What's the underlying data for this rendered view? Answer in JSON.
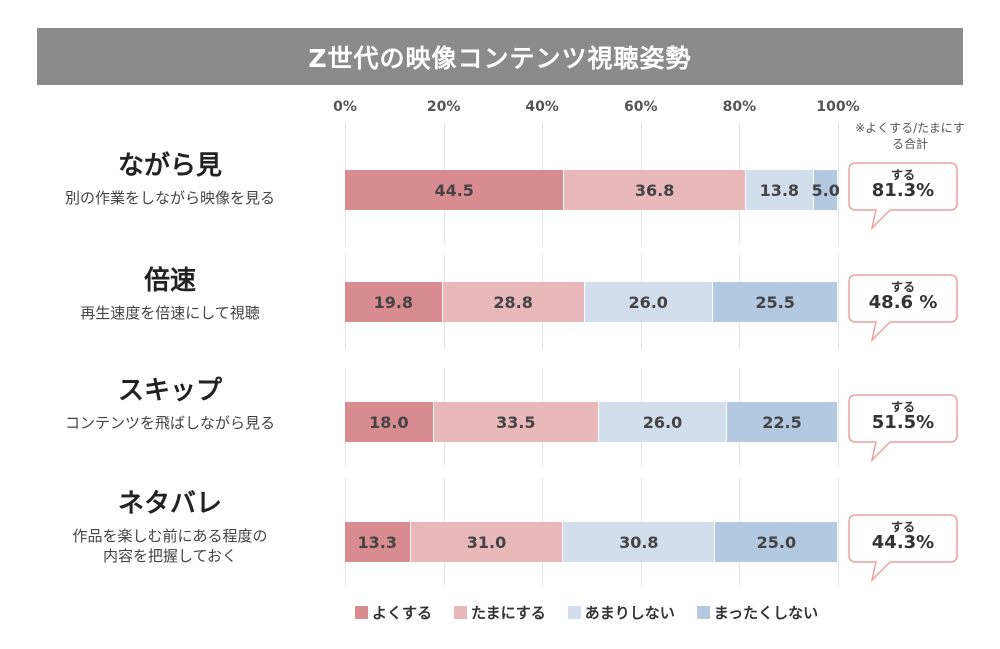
{
  "title": "Z世代の映像コンテンツ視聴姿勢",
  "chart_data": {
    "type": "bar",
    "orientation": "horizontal-stacked-100",
    "xlim": [
      0,
      100
    ],
    "ticks": [
      "0%",
      "20%",
      "40%",
      "60%",
      "80%",
      "100%"
    ],
    "grid": true,
    "legend_position": "bottom",
    "note": "※よくする/たまにする合計",
    "series": [
      {
        "name": "よくする",
        "color": "#d98c90"
      },
      {
        "name": "たまにする",
        "color": "#e8b8ba"
      },
      {
        "name": "あまりしない",
        "color": "#d3deec"
      },
      {
        "name": "まったくしない",
        "color": "#b3c8e1"
      }
    ],
    "categories": [
      {
        "label": "ながら見",
        "sub": [
          "別の作業をしながら映像を見る"
        ],
        "values": [
          44.5,
          36.8,
          13.8,
          5.0
        ],
        "labels": [
          "44.5",
          "36.8",
          "13.8",
          "5.0"
        ],
        "callout_head": "する",
        "callout": "81.3%"
      },
      {
        "label": "倍速",
        "sub": [
          "再生速度を倍速にして視聴"
        ],
        "values": [
          19.8,
          28.8,
          26.0,
          25.5
        ],
        "labels": [
          "19.8",
          "28.8",
          "26.0",
          "25.5"
        ],
        "callout_head": "する",
        "callout": "48.6 %"
      },
      {
        "label": "スキップ",
        "sub": [
          "コンテンツを飛ばしながら見る"
        ],
        "values": [
          18.0,
          33.5,
          26.0,
          22.5
        ],
        "labels": [
          "18.0",
          "33.5",
          "26.0",
          "22.5"
        ],
        "callout_head": "する",
        "callout": "51.5%"
      },
      {
        "label": "ネタバレ",
        "sub": [
          "作品を楽しむ前にある程度の",
          "内容を把握しておく"
        ],
        "values": [
          13.3,
          31.0,
          30.8,
          25.0
        ],
        "labels": [
          "13.3",
          "31.0",
          "30.8",
          "25.0"
        ],
        "callout_head": "する",
        "callout": "44.3%"
      }
    ]
  }
}
